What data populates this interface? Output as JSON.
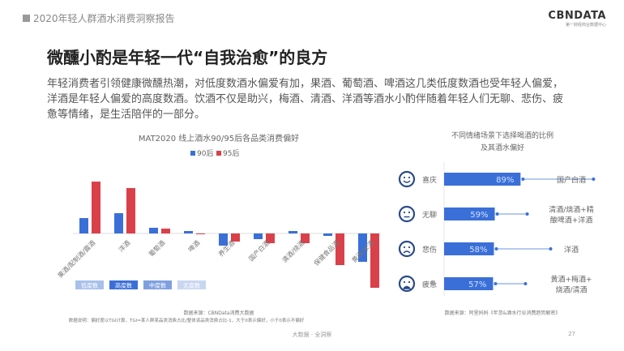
{
  "header": {
    "report_title": "2020年轻人群酒水消费洞察报告",
    "logo": "CBNDATA",
    "logo_sub": "第一财经商业数据中心"
  },
  "title": "微醺小酌是年轻一代“自我治愈”的良方",
  "paragraph": "年轻消费者引领健康微醺热潮，对低度数酒水偏爱有加，果酒、葡萄酒、啤酒这几类低度数酒也受年轻人偏爱，洋酒是年轻人偏爱的高度数酒。饮酒不仅是助兴，梅酒、清酒、洋酒等酒水小酌伴随着年轻人们无聊、悲伤、疲惫等情绪，是生活陪伴的一部分。",
  "chart_data": [
    {
      "type": "bar",
      "title": "MAT2020 线上酒水90/95后各品类消费偏好",
      "legend_position": "top",
      "categories": [
        "果酒/配制酒/露酒",
        "洋酒",
        "葡萄酒",
        "啤酒",
        "养生酒",
        "国产白酒",
        "清酒/烧酒",
        "保健食品酒",
        "黄酒/米酒"
      ],
      "series": [
        {
          "name": "90后",
          "color": "#3b6fd8",
          "values": [
            0.19,
            0.25,
            0.07,
            0.03,
            -0.15,
            -0.07,
            0.03,
            -0.03,
            -0.35
          ]
        },
        {
          "name": "95后",
          "color": "#d9404a",
          "values": [
            0.64,
            0.56,
            0.06,
            -0.01,
            -0.1,
            -0.12,
            -0.12,
            -0.39,
            -0.67
          ]
        }
      ],
      "ylim": [
        -0.7,
        0.7
      ],
      "grid": false,
      "category_groups": [
        {
          "label": "低度数",
          "color": "#a9c0ea"
        },
        {
          "label": "高度数",
          "color": "#3b6fd8"
        },
        {
          "label": "中度数",
          "color": "#7fa0e0"
        },
        {
          "label": "无度数",
          "color": "#c8d6f0"
        }
      ],
      "source": "数据来源：CBNData消费大数据",
      "note": "数据说明：偏好度以TGI计算，TGI=某人群某品类消费占比/整体该品类消费占比-1，大于0表示偏好，小于0表示不偏好"
    },
    {
      "type": "bar",
      "orientation": "horizontal",
      "title": "不同情绪场景下选择喝酒的比例",
      "subtitle": "及其酒水偏好",
      "color": "#3b6fd8",
      "categories": [
        "喜庆",
        "无聊",
        "悲伤",
        "疲惫"
      ],
      "icons": [
        "happy-face-icon",
        "neutral-face-icon",
        "sad-face-icon",
        "tired-face-icon"
      ],
      "values": [
        89,
        59,
        58,
        57
      ],
      "value_labels": [
        "89%",
        "59%",
        "58%",
        "57%"
      ],
      "preferences": [
        [
          "国产白酒"
        ],
        [
          "清酒/烧酒+精",
          "酿啤酒+洋酒"
        ],
        [
          "洋酒"
        ],
        [
          "黄酒+梅酒+",
          "烧酒/清酒"
        ]
      ],
      "xlim": [
        0,
        100
      ],
      "source": "数据来源：阿里妈妈《年货&酒水行业消费趋势解密》"
    }
  ],
  "footer": {
    "slogan": "大数据 · 全洞察",
    "page": "27"
  }
}
